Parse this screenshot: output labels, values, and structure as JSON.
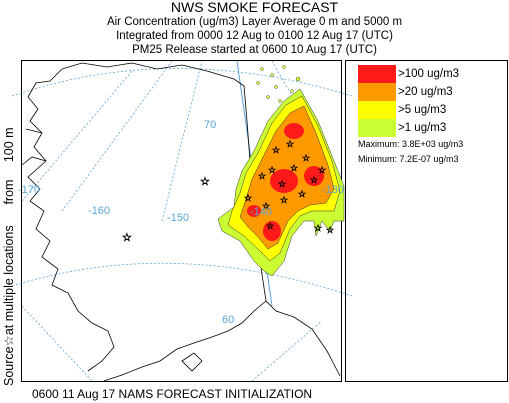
{
  "header": {
    "title": "NWS SMOKE FORECAST",
    "line1": "Air Concentration (ug/m3) Layer Average    0 m and  5000 m",
    "line2": "Integrated from 0000 12 Aug to 0100 12 Aug 17 (UTC)",
    "line3": "PM25 Release started at 0600 10 Aug 17 (UTC)"
  },
  "side_label": {
    "part1": "Source ",
    "star": "☆",
    "part2": " at multiple locations",
    "part3": "from",
    "part4": "100 m"
  },
  "map": {
    "longitude_labels": [
      "-170",
      "-160",
      "-150",
      "-140",
      "-130"
    ],
    "latitude_labels": [
      "70",
      "60"
    ],
    "colors": {
      "grid": "#5aa6d6",
      "coast": "#000000",
      "meridian_edge": "#5a9fd6"
    }
  },
  "legend": {
    "items": [
      {
        "label": ">100 ug/m3",
        "color": "#ff1a1a"
      },
      {
        "label": ">20 ug/m3",
        "color": "#ff9900"
      },
      {
        "label": ">5 ug/m3",
        "color": "#ffff00"
      },
      {
        "label": ">1 ug/m3",
        "color": "#ccff33"
      }
    ],
    "maximum": "Maximum: 3.8E+03 ug/m3",
    "minimum": "Minimum: 7.2E-07 ug/m3"
  },
  "footer": {
    "text": "0600 11 Aug 17 NAMS FORECAST INITIALIZATION"
  }
}
